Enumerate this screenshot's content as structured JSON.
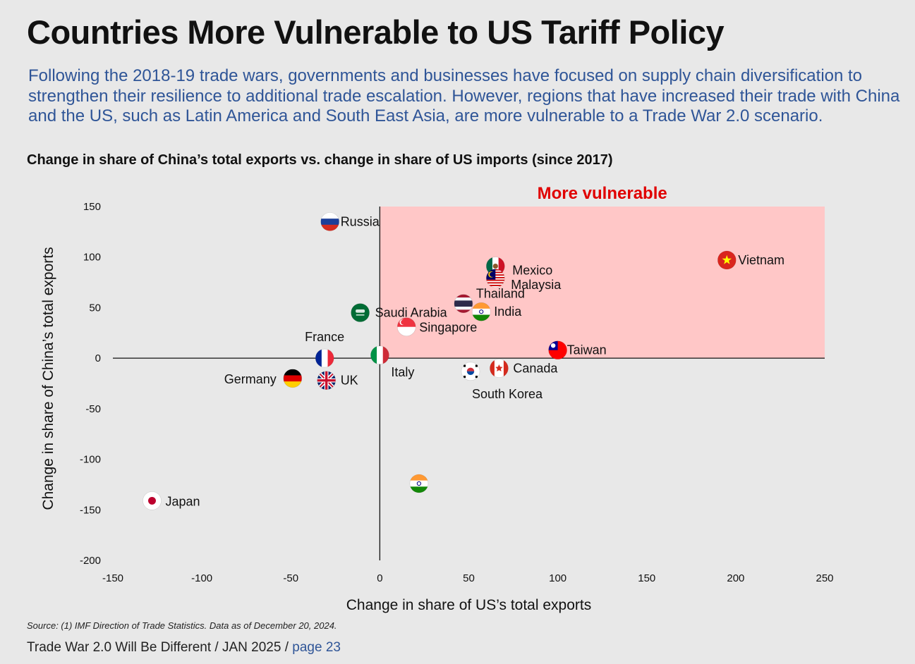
{
  "header": {
    "title": "Countries More Vulnerable to US Tariff Policy",
    "subtitle": "Following the 2018-19 trade wars, governments and businesses have focused on supply chain diversification to strengthen their resilience to additional trade escalation. However, regions that have increased their trade with China and the US, such as Latin America and South East Asia, are more vulnerable to a Trade War 2.0 scenario.",
    "chart_heading": "Change in share of China’s total exports vs. change in share of US imports (since 2017)"
  },
  "chart_data": {
    "type": "scatter",
    "xlabel": "Change in share of US’s total exports",
    "ylabel": "Change in share of China’s total exports",
    "xlim": [
      -150,
      250
    ],
    "ylim": [
      -200,
      150
    ],
    "xticks": [
      "-150",
      "-100",
      "-50",
      "0",
      "50",
      "100",
      "150",
      "200",
      "250"
    ],
    "yticks": [
      "150",
      "100",
      "50",
      "0",
      "-50",
      "-100",
      "-150",
      "-200"
    ],
    "grid": false,
    "highlight_region": {
      "label": "More vulnerable",
      "x": [
        0,
        250
      ],
      "y": [
        0,
        150
      ],
      "color": "#ffc7c7",
      "label_color": "#e00000"
    },
    "points": [
      {
        "label": "Russia",
        "x": -28,
        "y": 135,
        "flag": "russia-flag"
      },
      {
        "label": "Mexico",
        "x": 65,
        "y": 91,
        "flag": "mexico-flag"
      },
      {
        "label": "Malaysia",
        "x": 65,
        "y": 79,
        "flag": "malaysia-flag"
      },
      {
        "label": "Vietnam",
        "x": 195,
        "y": 97,
        "flag": "vietnam-flag"
      },
      {
        "label": "Thailand",
        "x": 47,
        "y": 54,
        "flag": "thailand-flag"
      },
      {
        "label": "India",
        "x": 57,
        "y": 46,
        "flag": "india-flag"
      },
      {
        "label": "Saudi Arabia",
        "x": -11,
        "y": 45,
        "flag": "saudi-arabia-flag"
      },
      {
        "label": "Singapore",
        "x": 15,
        "y": 31,
        "flag": "singapore-flag"
      },
      {
        "label": "France",
        "x": -31,
        "y": 0,
        "flag": "france-flag"
      },
      {
        "label": "Italy",
        "x": 0,
        "y": 3,
        "flag": "italy-flag"
      },
      {
        "label": "Taiwan",
        "x": 100,
        "y": 8,
        "flag": "taiwan-flag"
      },
      {
        "label": "Canada",
        "x": 67,
        "y": -10,
        "flag": "canada-flag"
      },
      {
        "label": "South Korea",
        "x": 51,
        "y": -13,
        "flag": "south-korea-flag"
      },
      {
        "label": "Germany",
        "x": -49,
        "y": -20,
        "flag": "germany-flag"
      },
      {
        "label": "UK",
        "x": -30,
        "y": -22,
        "flag": "uk-flag"
      },
      {
        "label": "Japan",
        "x": -128,
        "y": -141,
        "flag": "japan-flag"
      },
      {
        "label": "",
        "x": 22,
        "y": -124,
        "flag": "india-flag"
      }
    ]
  },
  "footer": {
    "source": "Source: (1) IMF Direction of Trade Statistics. Data as of December 20, 2024.",
    "doc": "Trade War 2.0 Will Be Different / JAN 2025 / ",
    "page": "page 23"
  }
}
